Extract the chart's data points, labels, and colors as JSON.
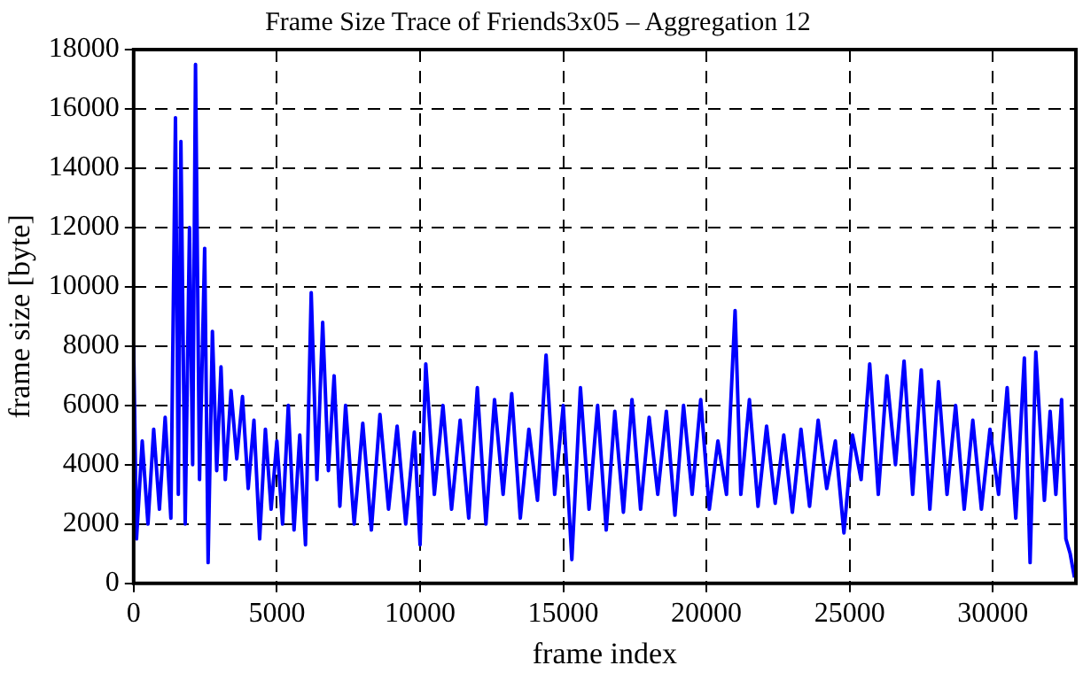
{
  "chart_data": {
    "type": "line",
    "title": "Frame Size Trace of Friends3x05 – Aggregation 12",
    "xlabel": "frame index",
    "ylabel": "frame size [byte]",
    "x": [
      0,
      100,
      300,
      500,
      700,
      900,
      1100,
      1300,
      1460,
      1560,
      1650,
      1800,
      1950,
      2060,
      2160,
      2300,
      2480,
      2600,
      2750,
      2900,
      3050,
      3200,
      3400,
      3600,
      3800,
      4000,
      4200,
      4400,
      4600,
      4800,
      5000,
      5200,
      5400,
      5600,
      5800,
      6000,
      6200,
      6400,
      6600,
      6800,
      7000,
      7200,
      7400,
      7700,
      8000,
      8300,
      8600,
      8900,
      9200,
      9500,
      9800,
      10000,
      10200,
      10500,
      10800,
      11100,
      11400,
      11700,
      12000,
      12300,
      12600,
      12900,
      13200,
      13500,
      13800,
      14100,
      14400,
      14700,
      15000,
      15300,
      15600,
      15900,
      16200,
      16500,
      16800,
      17100,
      17400,
      17700,
      18000,
      18300,
      18600,
      18900,
      19200,
      19500,
      19800,
      20100,
      20400,
      20700,
      21000,
      21200,
      21500,
      21800,
      22100,
      22400,
      22700,
      23000,
      23300,
      23600,
      23900,
      24200,
      24500,
      24800,
      25100,
      25400,
      25700,
      26000,
      26300,
      26600,
      26900,
      27200,
      27500,
      27800,
      28100,
      28400,
      28700,
      29000,
      29300,
      29600,
      29900,
      30200,
      30500,
      30800,
      31100,
      31300,
      31500,
      31800,
      32000,
      32200,
      32400,
      32550,
      32700,
      32850
    ],
    "series": [
      {
        "color": "#0000ff",
        "values": [
          8000,
          1500,
          4800,
          2000,
          5200,
          2500,
          5600,
          2200,
          15700,
          3000,
          14900,
          2000,
          12000,
          4000,
          17500,
          3500,
          11300,
          700,
          8500,
          3800,
          7300,
          3500,
          6500,
          4200,
          6300,
          3200,
          5500,
          1500,
          5200,
          2500,
          4800,
          2000,
          6000,
          1800,
          5000,
          1300,
          9800,
          3500,
          8800,
          3800,
          7000,
          2600,
          6000,
          2000,
          5400,
          1800,
          5700,
          2500,
          5300,
          2000,
          5100,
          1300,
          7400,
          3000,
          6000,
          2500,
          5500,
          2200,
          6600,
          2000,
          6200,
          3000,
          6400,
          2200,
          5200,
          2800,
          7700,
          3000,
          6000,
          800,
          6600,
          2500,
          6000,
          1800,
          5800,
          2400,
          6200,
          2500,
          5600,
          3000,
          5800,
          2300,
          6000,
          3000,
          6200,
          2500,
          4800,
          3000,
          9200,
          3000,
          6200,
          2600,
          5300,
          2700,
          5000,
          2400,
          5200,
          2600,
          5500,
          3200,
          4800,
          1700,
          5000,
          3500,
          7400,
          3000,
          7000,
          4000,
          7500,
          3000,
          7200,
          2500,
          6800,
          3000,
          6000,
          2500,
          5500,
          2500,
          5200,
          3000,
          6600,
          2200,
          7600,
          700,
          7800,
          2800,
          5800,
          3000,
          6200,
          1500,
          1000,
          200
        ]
      }
    ],
    "xlim": [
      0,
      32900
    ],
    "ylim": [
      0,
      18000
    ],
    "xticks": [
      0,
      5000,
      10000,
      15000,
      20000,
      25000,
      30000
    ],
    "yticks": [
      0,
      2000,
      4000,
      6000,
      8000,
      10000,
      12000,
      14000,
      16000,
      18000
    ],
    "grid": true,
    "marker": "none",
    "line_style": "solid"
  }
}
